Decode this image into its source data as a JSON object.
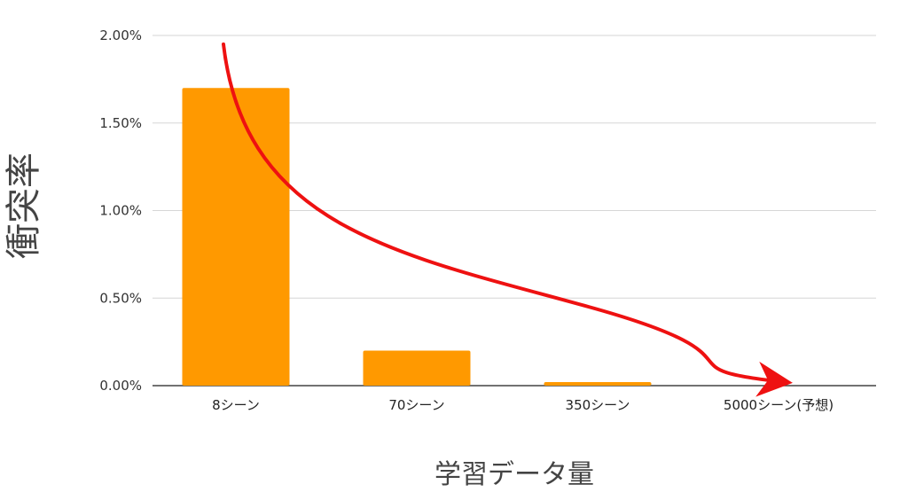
{
  "chart_data": {
    "type": "bar",
    "categories": [
      "8シーン",
      "70シーン",
      "350シーン",
      "5000シーン(予想)"
    ],
    "series": [
      {
        "values": [
          1.7,
          0.2,
          0.02,
          0.0
        ],
        "color": "#ff9900"
      }
    ],
    "xlabel": "学習データ量",
    "ylabel": "衝突率",
    "ylim": [
      0,
      2.0
    ],
    "yticks": [
      "0.00%",
      "0.50%",
      "1.00%",
      "1.50%",
      "2.00%"
    ],
    "ytick_values": [
      0,
      0.5,
      1.0,
      1.5,
      2.0
    ],
    "grid": true,
    "annotation": {
      "kind": "trend-arrow",
      "color": "#ee1111",
      "description": "red downward-curving trend arrow from the first bar to the last category"
    }
  }
}
